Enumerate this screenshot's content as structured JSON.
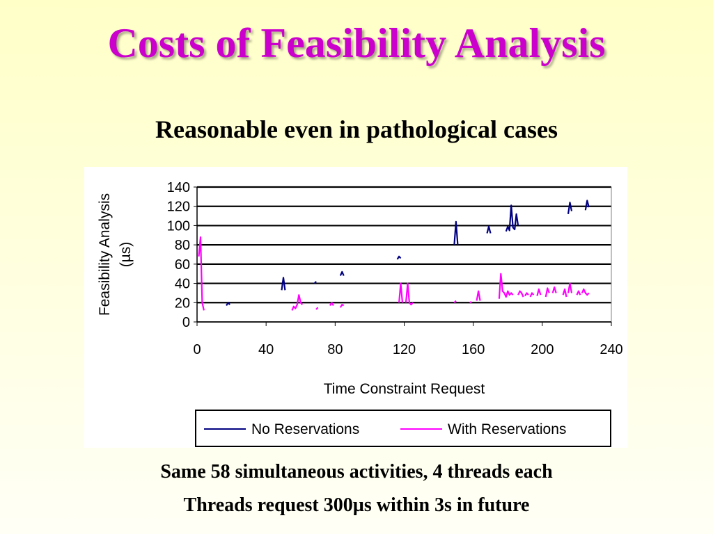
{
  "slide": {
    "title": "Costs of Feasibility Analysis",
    "subtitle": "Reasonable even in pathological cases",
    "notes": [
      "Same 58 simultaneous activities, 4 threads each",
      "Threads request 300µs within 3s in future"
    ]
  },
  "chart_data": {
    "type": "line",
    "xlabel": "Time Constraint Request",
    "ylabel_lines": [
      "Feasibility Analysis",
      "(µs)"
    ],
    "xlim": [
      0,
      240
    ],
    "ylim": [
      0,
      140
    ],
    "xticks": [
      "0",
      "40",
      "80",
      "120",
      "160",
      "200",
      "240"
    ],
    "yticks": [
      "0",
      "20",
      "40",
      "60",
      "80",
      "100",
      "120",
      "140"
    ],
    "grid": "horizontal",
    "legend": "bottom",
    "series": [
      {
        "name": "No Reservations",
        "color": "#000080",
        "segments": [
          [
            [
              17,
              17
            ],
            [
              18,
              20
            ],
            [
              19,
              18
            ]
          ],
          [
            [
              49,
              33
            ],
            [
              50,
              46
            ],
            [
              51,
              33
            ]
          ],
          [
            [
              68,
              40
            ],
            [
              69,
              42
            ]
          ],
          [
            [
              83,
              48
            ],
            [
              84,
              52
            ],
            [
              85,
              48
            ]
          ],
          [
            [
              116,
              65
            ],
            [
              117,
              68
            ],
            [
              118,
              66
            ]
          ],
          [
            [
              149,
              80
            ],
            [
              150,
              104
            ],
            [
              151,
              80
            ]
          ],
          [
            [
              168,
              92
            ],
            [
              169,
              99
            ],
            [
              170,
              92
            ]
          ],
          [
            [
              179,
              94
            ],
            [
              180,
              99
            ],
            [
              181,
              95
            ],
            [
              182,
              121
            ],
            [
              183,
              98
            ],
            [
              184,
              96
            ],
            [
              185,
              112
            ],
            [
              186,
              100
            ]
          ],
          [
            [
              215,
              112
            ],
            [
              216,
              124
            ],
            [
              217,
              115
            ]
          ],
          [
            [
              225,
              116
            ],
            [
              226,
              126
            ],
            [
              227,
              119
            ]
          ]
        ]
      },
      {
        "name": "With Reservations",
        "color": "#ff00ff",
        "segments": [
          [
            [
              1,
              68
            ],
            [
              2,
              88
            ],
            [
              3,
              20
            ],
            [
              4,
              12
            ]
          ],
          [
            [
              55,
              12
            ],
            [
              56,
              16
            ],
            [
              57,
              14
            ],
            [
              58,
              18
            ],
            [
              59,
              28
            ],
            [
              60,
              20
            ],
            [
              61,
              18
            ]
          ],
          [
            [
              69,
              13
            ],
            [
              70,
              15
            ]
          ],
          [
            [
              77,
              17
            ],
            [
              78,
              20
            ],
            [
              79,
              17
            ]
          ],
          [
            [
              83,
              15
            ],
            [
              84,
              18
            ],
            [
              85,
              17
            ]
          ],
          [
            [
              117,
              20
            ],
            [
              118,
              40
            ],
            [
              119,
              20
            ]
          ],
          [
            [
              121,
              20
            ],
            [
              122,
              40
            ],
            [
              123,
              20
            ],
            [
              124,
              18
            ],
            [
              125,
              20
            ]
          ],
          [
            [
              149,
              20
            ],
            [
              150,
              22
            ]
          ],
          [
            [
              158,
              20
            ],
            [
              159,
              21
            ]
          ],
          [
            [
              162,
              22
            ],
            [
              163,
              32
            ],
            [
              164,
              22
            ]
          ],
          [
            [
              175,
              24
            ],
            [
              176,
              50
            ],
            [
              177,
              32
            ],
            [
              178,
              30
            ],
            [
              179,
              26
            ],
            [
              180,
              32
            ],
            [
              181,
              28
            ],
            [
              182,
              30
            ],
            [
              183,
              28
            ]
          ],
          [
            [
              186,
              28
            ],
            [
              187,
              32
            ],
            [
              188,
              30
            ],
            [
              189,
              26
            ]
          ],
          [
            [
              190,
              27
            ],
            [
              191,
              30
            ],
            [
              192,
              28
            ]
          ],
          [
            [
              193,
              26
            ],
            [
              194,
              30
            ],
            [
              195,
              28
            ]
          ],
          [
            [
              197,
              27
            ],
            [
              198,
              34
            ],
            [
              199,
              28
            ]
          ],
          [
            [
              202,
              26
            ],
            [
              203,
              35
            ],
            [
              204,
              30
            ]
          ],
          [
            [
              206,
              30
            ],
            [
              207,
              36
            ],
            [
              208,
              30
            ]
          ],
          [
            [
              212,
              28
            ],
            [
              213,
              34
            ],
            [
              214,
              26
            ]
          ],
          [
            [
              215,
              30
            ],
            [
              216,
              40
            ],
            [
              217,
              30
            ]
          ],
          [
            [
              220,
              28
            ],
            [
              221,
              32
            ],
            [
              222,
              28
            ]
          ],
          [
            [
              223,
              30
            ],
            [
              224,
              34
            ],
            [
              225,
              30
            ],
            [
              226,
              28
            ],
            [
              227,
              30
            ]
          ]
        ]
      }
    ]
  }
}
